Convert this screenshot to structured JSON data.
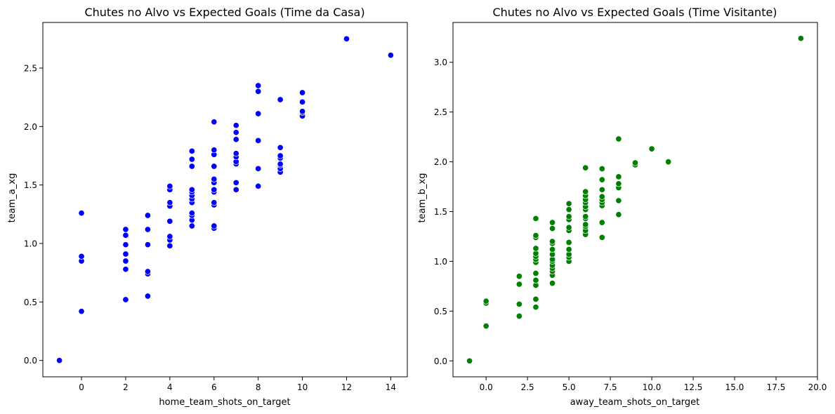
{
  "chart_data": [
    {
      "type": "scatter",
      "title": "Chutes no Alvo vs Expected Goals (Time da Casa)",
      "xlabel": "home_team_shots_on_target",
      "ylabel": "team_a_xg",
      "xlim": [
        -1.75,
        14.75
      ],
      "ylim": [
        -0.14,
        2.89
      ],
      "xticks": [
        0,
        2,
        4,
        6,
        8,
        10,
        12,
        14
      ],
      "xtick_labels": [
        "0",
        "2",
        "4",
        "6",
        "8",
        "10",
        "12",
        "14"
      ],
      "yticks": [
        0.0,
        0.5,
        1.0,
        1.5,
        2.0,
        2.5
      ],
      "ytick_labels": [
        "0.0",
        "0.5",
        "1.0",
        "1.5",
        "2.0",
        "2.5"
      ],
      "grid": false,
      "color": "#0000ff",
      "points": [
        [
          -1,
          0.0
        ],
        [
          0,
          0.42
        ],
        [
          0,
          0.85
        ],
        [
          0,
          0.89
        ],
        [
          0,
          1.26
        ],
        [
          2,
          0.52
        ],
        [
          2,
          0.78
        ],
        [
          2,
          0.85
        ],
        [
          2,
          0.91
        ],
        [
          2,
          0.99
        ],
        [
          2,
          1.07
        ],
        [
          2,
          1.12
        ],
        [
          3,
          0.55
        ],
        [
          3,
          0.74
        ],
        [
          3,
          0.76
        ],
        [
          3,
          0.99
        ],
        [
          3,
          1.12
        ],
        [
          3,
          1.24
        ],
        [
          4,
          0.98
        ],
        [
          4,
          1.03
        ],
        [
          4,
          1.06
        ],
        [
          4,
          1.19
        ],
        [
          4,
          1.32
        ],
        [
          4,
          1.35
        ],
        [
          4,
          1.46
        ],
        [
          4,
          1.49
        ],
        [
          5,
          1.15
        ],
        [
          5,
          1.2
        ],
        [
          5,
          1.24
        ],
        [
          5,
          1.26
        ],
        [
          5,
          1.35
        ],
        [
          5,
          1.38
        ],
        [
          5,
          1.41
        ],
        [
          5,
          1.44
        ],
        [
          5,
          1.46
        ],
        [
          5,
          1.66
        ],
        [
          5,
          1.72
        ],
        [
          5,
          1.79
        ],
        [
          6,
          1.13
        ],
        [
          6,
          1.15
        ],
        [
          6,
          1.33
        ],
        [
          6,
          1.35
        ],
        [
          6,
          1.44
        ],
        [
          6,
          1.46
        ],
        [
          6,
          1.52
        ],
        [
          6,
          1.55
        ],
        [
          6,
          1.66
        ],
        [
          6,
          1.76
        ],
        [
          6,
          1.8
        ],
        [
          6,
          2.04
        ],
        [
          7,
          1.46
        ],
        [
          7,
          1.52
        ],
        [
          7,
          1.68
        ],
        [
          7,
          1.7
        ],
        [
          7,
          1.74
        ],
        [
          7,
          1.77
        ],
        [
          7,
          1.89
        ],
        [
          7,
          1.95
        ],
        [
          7,
          2.01
        ],
        [
          8,
          1.49
        ],
        [
          8,
          1.64
        ],
        [
          8,
          1.88
        ],
        [
          8,
          2.11
        ],
        [
          8,
          2.3
        ],
        [
          8,
          2.35
        ],
        [
          9,
          1.61
        ],
        [
          9,
          1.64
        ],
        [
          9,
          1.67
        ],
        [
          9,
          1.68
        ],
        [
          9,
          1.73
        ],
        [
          9,
          1.75
        ],
        [
          9,
          1.82
        ],
        [
          9,
          2.23
        ],
        [
          10,
          2.09
        ],
        [
          10,
          2.12
        ],
        [
          10,
          2.13
        ],
        [
          10,
          2.21
        ],
        [
          10,
          2.29
        ],
        [
          12,
          2.75
        ],
        [
          14,
          2.61
        ]
      ]
    },
    {
      "type": "scatter",
      "title": "Chutes no Alvo vs Expected Goals (Time Visitante)",
      "xlabel": "away_team_shots_on_target",
      "ylabel": "team_b_xg",
      "xlim": [
        -2.0,
        20.0
      ],
      "ylim": [
        -0.16,
        3.4
      ],
      "xticks": [
        0.0,
        2.5,
        5.0,
        7.5,
        10.0,
        12.5,
        15.0,
        17.5,
        20.0
      ],
      "xtick_labels": [
        "0.0",
        "2.5",
        "5.0",
        "7.5",
        "10.0",
        "12.5",
        "15.0",
        "17.5",
        "20.0"
      ],
      "yticks": [
        0.0,
        0.5,
        1.0,
        1.5,
        2.0,
        2.5,
        3.0
      ],
      "ytick_labels": [
        "0.0",
        "0.5",
        "1.0",
        "1.5",
        "2.0",
        "2.5",
        "3.0"
      ],
      "grid": false,
      "color": "#008000",
      "points": [
        [
          -1,
          0.0
        ],
        [
          0,
          0.35
        ],
        [
          0,
          0.58
        ],
        [
          0,
          0.6
        ],
        [
          2,
          0.45
        ],
        [
          2,
          0.57
        ],
        [
          2,
          0.77
        ],
        [
          2,
          0.85
        ],
        [
          3,
          0.54
        ],
        [
          3,
          0.62
        ],
        [
          3,
          0.76
        ],
        [
          3,
          0.81
        ],
        [
          3,
          0.88
        ],
        [
          3,
          0.99
        ],
        [
          3,
          1.02
        ],
        [
          3,
          1.05
        ],
        [
          3,
          1.08
        ],
        [
          3,
          1.13
        ],
        [
          3,
          1.24
        ],
        [
          3,
          1.26
        ],
        [
          3,
          1.43
        ],
        [
          4,
          0.78
        ],
        [
          4,
          0.86
        ],
        [
          4,
          0.9
        ],
        [
          4,
          0.93
        ],
        [
          4,
          0.96
        ],
        [
          4,
          1.0
        ],
        [
          4,
          1.02
        ],
        [
          4,
          1.07
        ],
        [
          4,
          1.12
        ],
        [
          4,
          1.18
        ],
        [
          4,
          1.2
        ],
        [
          4,
          1.33
        ],
        [
          4,
          1.39
        ],
        [
          5,
          1.0
        ],
        [
          5,
          1.04
        ],
        [
          5,
          1.07
        ],
        [
          5,
          1.12
        ],
        [
          5,
          1.19
        ],
        [
          5,
          1.31
        ],
        [
          5,
          1.34
        ],
        [
          5,
          1.42
        ],
        [
          5,
          1.45
        ],
        [
          5,
          1.52
        ],
        [
          5,
          1.58
        ],
        [
          6,
          1.27
        ],
        [
          6,
          1.31
        ],
        [
          6,
          1.35
        ],
        [
          6,
          1.37
        ],
        [
          6,
          1.43
        ],
        [
          6,
          1.45
        ],
        [
          6,
          1.52
        ],
        [
          6,
          1.55
        ],
        [
          6,
          1.59
        ],
        [
          6,
          1.62
        ],
        [
          6,
          1.66
        ],
        [
          6,
          1.7
        ],
        [
          6,
          1.94
        ],
        [
          7,
          1.24
        ],
        [
          7,
          1.39
        ],
        [
          7,
          1.56
        ],
        [
          7,
          1.59
        ],
        [
          7,
          1.62
        ],
        [
          7,
          1.65
        ],
        [
          7,
          1.72
        ],
        [
          7,
          1.82
        ],
        [
          7,
          1.93
        ],
        [
          8,
          1.47
        ],
        [
          8,
          1.61
        ],
        [
          8,
          1.74
        ],
        [
          8,
          1.78
        ],
        [
          8,
          1.85
        ],
        [
          8,
          2.23
        ],
        [
          9,
          1.97
        ],
        [
          9,
          1.99
        ],
        [
          10,
          2.13
        ],
        [
          11,
          2.0
        ],
        [
          19,
          3.24
        ]
      ]
    }
  ]
}
